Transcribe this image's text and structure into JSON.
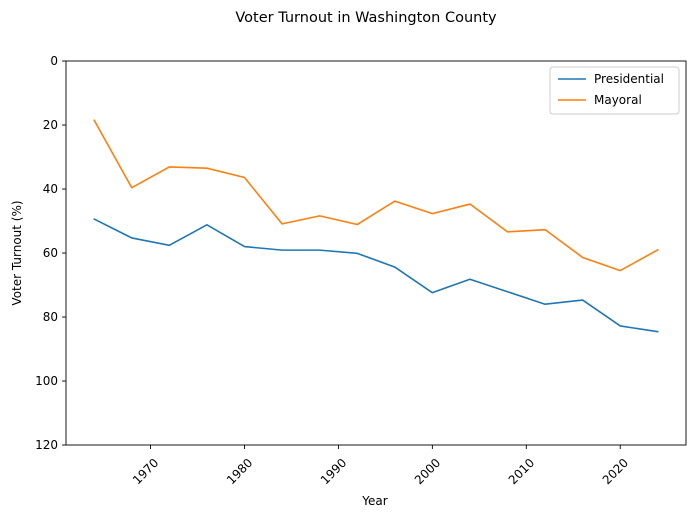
{
  "chart_data": {
    "type": "line",
    "title": "Voter Turnout in Washington County",
    "xlabel": "Year",
    "ylabel": "Voter Turnout (%)",
    "xlim": [
      1961,
      2027
    ],
    "ylim": [
      120,
      0
    ],
    "y_inverted": true,
    "x_ticks": [
      "1970",
      "1980",
      "1990",
      "2000",
      "2010",
      "2020"
    ],
    "y_ticks": [
      "0",
      "20",
      "40",
      "60",
      "80",
      "100",
      "120"
    ],
    "x": [
      1964,
      1968,
      1972,
      1976,
      1980,
      1984,
      1988,
      1992,
      1996,
      2000,
      2004,
      2008,
      2012,
      2016,
      2020,
      2024
    ],
    "series": [
      {
        "name": "Presidential",
        "color": "#1f77b4",
        "values": [
          49.4,
          55.3,
          57.6,
          51.2,
          58.0,
          59.1,
          59.1,
          60.1,
          64.4,
          72.4,
          68.2,
          72.1,
          76.0,
          74.7,
          82.8,
          84.6
        ]
      },
      {
        "name": "Mayoral",
        "color": "#ff7f0e",
        "values": [
          18.5,
          39.6,
          33.1,
          33.5,
          36.4,
          50.9,
          48.4,
          51.1,
          43.8,
          47.7,
          44.7,
          53.4,
          52.7,
          61.4,
          65.5,
          59.0
        ]
      }
    ],
    "legend_position": "top-right",
    "grid": false
  }
}
